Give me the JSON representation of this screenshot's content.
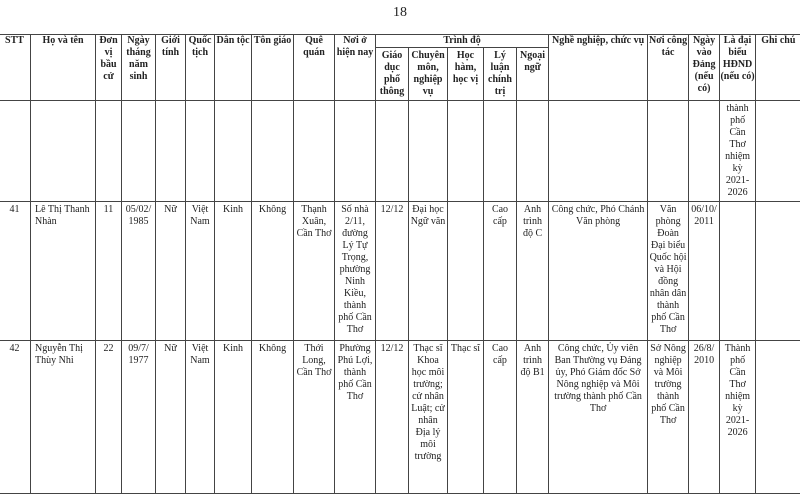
{
  "page_number": "18",
  "headers": {
    "stt": "STT",
    "name": "Họ và tên",
    "unit": "Đơn vị bầu cử",
    "dob": "Ngày tháng năm sinh",
    "gender": "Giới tính",
    "nationality": "Quốc tịch",
    "ethnicity": "Dân tộc",
    "religion": "Tôn giáo",
    "hometown": "Quê quán",
    "residence": "Nơi ở hiện nay",
    "education_group": "Trình độ",
    "general_edu": "Giáo dục phổ thông",
    "specialty": "Chuyên môn, nghiệp vụ",
    "degree": "Học hàm, học vị",
    "politics": "Lý luận chính trị",
    "language": "Ngoại ngữ",
    "occupation": "Nghề nghiệp, chức vụ",
    "workplace": "Nơi công tác",
    "party_date": "Ngày vào Đảng (nếu có)",
    "hdnd": "Là đại biểu HĐND (nếu có)",
    "note": "Ghi chú"
  },
  "continuation": {
    "hdnd": "thành phố Cần Thơ nhiệm kỳ 2021-2026"
  },
  "rows": [
    {
      "stt": "41",
      "name": "Lê Thị Thanh Nhàn",
      "unit": "11",
      "dob": "05/02/ 1985",
      "gender": "Nữ",
      "nationality": "Việt Nam",
      "ethnicity": "Kinh",
      "religion": "Không",
      "hometown": "Thạnh Xuân, Cần Thơ",
      "residence": "Số nhà 2/11, đường Lý Tự Trọng, phường Ninh Kiều, thành phố Cần Thơ",
      "general_edu": "12/12",
      "specialty": "Đại học Ngữ văn",
      "degree": "",
      "politics": "Cao cấp",
      "language": "Anh trình độ C",
      "occupation": "Công chức, Phó Chánh Văn phòng",
      "workplace": "Văn phòng Đoàn Đại biểu Quốc hội và Hội đồng nhân dân thành phố Cần Thơ",
      "party_date": "06/10/ 2011",
      "hdnd": "",
      "note": ""
    },
    {
      "stt": "42",
      "name": "Nguyễn Thị Thùy Nhi",
      "unit": "22",
      "dob": "09/7/ 1977",
      "gender": "Nữ",
      "nationality": "Việt Nam",
      "ethnicity": "Kinh",
      "religion": "Không",
      "hometown": "Thới Long, Cần Thơ",
      "residence": "Phường Phú Lợi, thành phố Cần Thơ",
      "general_edu": "12/12",
      "specialty": "Thạc sĩ Khoa học môi trường; cử nhân Luật; cử nhân Địa lý môi trường",
      "degree": "Thạc sĩ",
      "politics": "Cao cấp",
      "language": "Anh trình độ B1",
      "occupation": "Công chức, Ủy viên Ban Thường vụ Đảng ủy, Phó Giám đốc Sở Nông nghiệp và Môi trường thành phố Cần Thơ",
      "workplace": "Sở Nông nghiệp và Môi trường thành phố Cần Thơ",
      "party_date": "26/8/ 2010",
      "hdnd": "Thành phố Cần Thơ nhiệm kỳ 2021-2026",
      "note": ""
    }
  ]
}
